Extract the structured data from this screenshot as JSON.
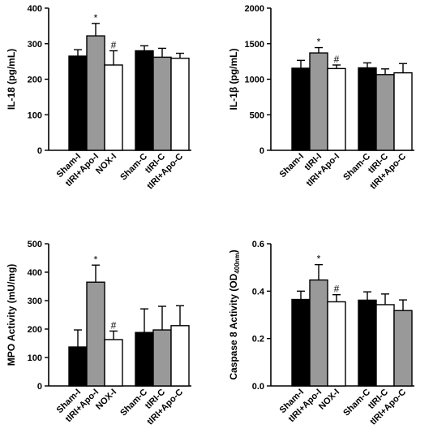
{
  "chart_data": [
    {
      "type": "bar",
      "ylabel": "IL-18 (pg/mL)",
      "ylim": [
        0,
        400
      ],
      "yticks": [
        0,
        100,
        200,
        300,
        400
      ],
      "categories": [
        "Sham-I",
        "tIRI+Apo-I",
        "NOX-I",
        "Sham-C",
        "tIRI-C",
        "tIRI+Apo-C"
      ],
      "values": [
        265,
        322,
        240,
        280,
        262,
        259
      ],
      "errors": [
        18,
        35,
        40,
        14,
        25,
        14
      ],
      "fills": [
        "#000000",
        "#999999",
        "#ffffff",
        "#000000",
        "#999999",
        "#ffffff"
      ],
      "marks": [
        "",
        "*",
        "#",
        "",
        "",
        ""
      ],
      "grid": false
    },
    {
      "type": "bar",
      "ylabel_main": "IL-1",
      "ylabel_greek": "β",
      "ylabel_rest": " (pg/mL)",
      "ylim": [
        0,
        2000
      ],
      "yticks": [
        0,
        500,
        1000,
        1500,
        2000
      ],
      "categories": [
        "Sham-I",
        "tIRI-I",
        "tIRI+Apo-I",
        "Sham-C",
        "tIRI-C",
        "tIRI+Apo-C"
      ],
      "values": [
        1155,
        1370,
        1150,
        1160,
        1065,
        1090
      ],
      "errors": [
        110,
        75,
        50,
        70,
        80,
        130
      ],
      "fills": [
        "#000000",
        "#999999",
        "#ffffff",
        "#000000",
        "#999999",
        "#ffffff"
      ],
      "marks": [
        "",
        "*",
        "#",
        "",
        "",
        ""
      ],
      "grid": false
    },
    {
      "type": "bar",
      "ylabel": "MPO Activity (mU/mg)",
      "ylim": [
        0,
        500
      ],
      "yticks": [
        0,
        100,
        200,
        300,
        400,
        500
      ],
      "categories": [
        "Sham-I",
        "tIRI+Apo-I",
        "NOX-I",
        "Sham-C",
        "tIRI-C",
        "tIRI+Apo-C"
      ],
      "values": [
        137,
        365,
        163,
        188,
        197,
        212
      ],
      "errors": [
        60,
        60,
        30,
        83,
        83,
        70
      ],
      "fills": [
        "#000000",
        "#999999",
        "#ffffff",
        "#000000",
        "#999999",
        "#ffffff"
      ],
      "marks": [
        "",
        "*",
        "#",
        "",
        "",
        ""
      ],
      "grid": false
    },
    {
      "type": "bar",
      "ylabel_main": "Caspase 8 Activity (OD",
      "ylabel_sub": "400nm",
      "ylabel_rest": ")",
      "ylim": [
        0,
        0.6
      ],
      "yticks": [
        "0.0",
        "0.2",
        "0.4",
        "0.6"
      ],
      "categories": [
        "Sham-I",
        "tIRI+Apo-I",
        "NOX-I",
        "Sham-C",
        "tIRI-C",
        "tIRI+Apo-C"
      ],
      "values": [
        0.365,
        0.447,
        0.355,
        0.362,
        0.343,
        0.318
      ],
      "errors": [
        0.035,
        0.065,
        0.03,
        0.035,
        0.045,
        0.045
      ],
      "fills": [
        "#000000",
        "#999999",
        "#ffffff",
        "#000000",
        "#ffffff",
        "#999999"
      ],
      "marks": [
        "",
        "*",
        "#",
        "",
        "",
        ""
      ],
      "grid": false
    }
  ]
}
